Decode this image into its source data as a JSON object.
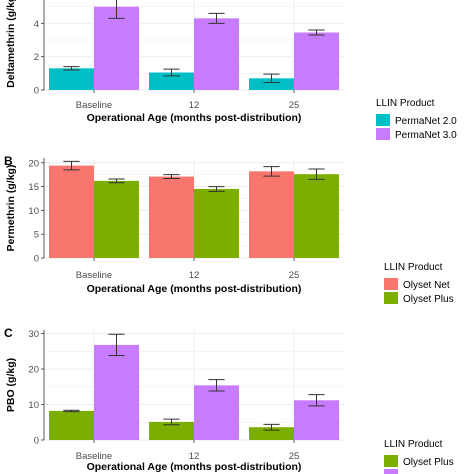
{
  "chart_data": [
    {
      "panel_label": "",
      "type": "bar",
      "ylabel": "Deltamethrin (g/kg)",
      "xlabel": "Operational Age (months post-distribution)",
      "ylim": [
        0,
        6
      ],
      "yticks": [
        0,
        2,
        4
      ],
      "categories": [
        "Baseline",
        "12",
        "25"
      ],
      "legend": {
        "title": "LLIN Product",
        "placement": "right"
      },
      "series": [
        {
          "name": "PermaNet 2.0",
          "color": "#00BFC4",
          "values": [
            1.3,
            1.05,
            0.7
          ],
          "err_low": [
            1.2,
            0.85,
            0.45
          ],
          "err_high": [
            1.4,
            1.25,
            0.95
          ]
        },
        {
          "name": "PermaNet 3.0",
          "color": "#C77CFF",
          "values": [
            5.0,
            4.3,
            3.45
          ],
          "err_low": [
            4.3,
            4.0,
            3.3
          ],
          "err_high": [
            5.7,
            4.6,
            3.6
          ]
        }
      ],
      "grid": true
    },
    {
      "panel_label": "B",
      "type": "bar",
      "ylabel": "Permethrin (g/kg)",
      "xlabel": "Operational Age (months post-distribution)",
      "ylim": [
        0,
        21
      ],
      "yticks": [
        0,
        5,
        10,
        15,
        20
      ],
      "categories": [
        "Baseline",
        "12",
        "25"
      ],
      "legend": {
        "title": "LLIN Product",
        "placement": "right"
      },
      "series": [
        {
          "name": "Olyset Net",
          "color": "#F8766D",
          "values": [
            19.4,
            17.1,
            18.2
          ],
          "err_low": [
            18.5,
            16.7,
            17.2
          ],
          "err_high": [
            20.3,
            17.5,
            19.2
          ]
        },
        {
          "name": "Olyset Plus",
          "color": "#7CAE00",
          "values": [
            16.2,
            14.5,
            17.6
          ],
          "err_low": [
            15.8,
            14.0,
            16.5
          ],
          "err_high": [
            16.6,
            15.0,
            18.7
          ]
        }
      ],
      "grid": true
    },
    {
      "panel_label": "C",
      "type": "bar",
      "ylabel": "PBO (g/kg)",
      "xlabel": "Operational Age (months post-distribution)",
      "ylim": [
        0,
        31
      ],
      "yticks": [
        0,
        10,
        20,
        30
      ],
      "categories": [
        "Baseline",
        "12",
        "25"
      ],
      "legend": {
        "title": "LLIN Product",
        "placement": "right"
      },
      "series": [
        {
          "name": "Olyset Plus",
          "color": "#7CAE00",
          "values": [
            8.2,
            5.1,
            3.6
          ],
          "err_low": [
            8.0,
            4.3,
            2.8
          ],
          "err_high": [
            8.4,
            5.9,
            4.4
          ]
        },
        {
          "name": "",
          "color": "#C77CFF",
          "values": [
            26.8,
            15.4,
            11.2
          ],
          "err_low": [
            23.8,
            13.8,
            9.6
          ],
          "err_high": [
            29.8,
            17.0,
            12.8
          ]
        }
      ],
      "grid": true
    }
  ]
}
